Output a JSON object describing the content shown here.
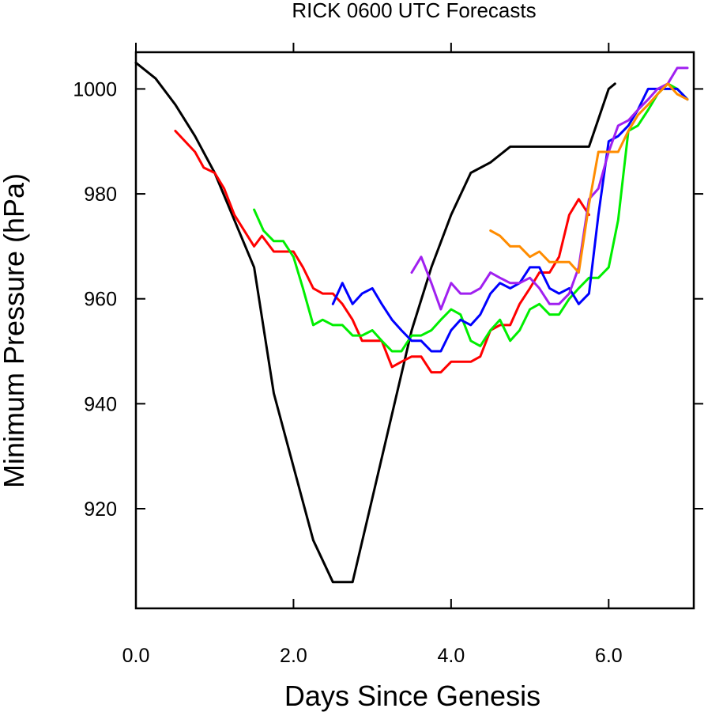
{
  "chart_data": {
    "type": "line",
    "title": "RICK 0600 UTC Forecasts",
    "xlabel": "Days Since Genesis",
    "ylabel": "Minimum Pressure (hPa)",
    "xlim": [
      0,
      7.08
    ],
    "ylim": [
      901,
      1007
    ],
    "x_ticks": [
      0,
      2,
      4,
      6
    ],
    "x_tick_labels": [
      "0.0",
      "2.0",
      "4.0",
      "6.0"
    ],
    "y_ticks": [
      920,
      940,
      960,
      980,
      1000
    ],
    "y_tick_labels": [
      "920",
      "940",
      "960",
      "980",
      "1000"
    ],
    "grid": false,
    "legend": "none",
    "series": [
      {
        "color": "#000000",
        "points": [
          [
            0,
            1005
          ],
          [
            0.25,
            1002
          ],
          [
            0.5,
            997
          ],
          [
            0.75,
            991
          ],
          [
            1.0,
            984
          ],
          [
            1.25,
            975
          ],
          [
            1.5,
            966
          ],
          [
            1.75,
            942
          ],
          [
            2.0,
            928
          ],
          [
            2.25,
            914
          ],
          [
            2.5,
            906
          ],
          [
            2.75,
            906
          ],
          [
            3.0,
            922
          ],
          [
            3.25,
            938
          ],
          [
            3.5,
            954
          ],
          [
            3.75,
            966
          ],
          [
            4.0,
            976
          ],
          [
            4.25,
            984
          ],
          [
            4.5,
            986
          ],
          [
            4.75,
            989
          ],
          [
            5.0,
            989
          ],
          [
            5.25,
            989
          ],
          [
            5.5,
            989
          ],
          [
            5.75,
            989
          ],
          [
            6.0,
            1000
          ],
          [
            6.08,
            1001
          ]
        ]
      },
      {
        "color": "#ff0000",
        "points": [
          [
            0.5,
            992
          ],
          [
            0.75,
            988
          ],
          [
            0.86,
            985
          ],
          [
            1.0,
            984
          ],
          [
            1.12,
            981
          ],
          [
            1.25,
            976
          ],
          [
            1.5,
            970
          ],
          [
            1.6,
            972
          ],
          [
            1.75,
            969
          ],
          [
            2.0,
            969
          ],
          [
            2.12,
            966
          ],
          [
            2.25,
            962
          ],
          [
            2.37,
            961
          ],
          [
            2.5,
            961
          ],
          [
            2.62,
            959
          ],
          [
            2.75,
            956
          ],
          [
            2.87,
            952
          ],
          [
            3.0,
            952
          ],
          [
            3.12,
            952
          ],
          [
            3.25,
            947
          ],
          [
            3.37,
            948
          ],
          [
            3.5,
            949
          ],
          [
            3.62,
            949
          ],
          [
            3.75,
            946
          ],
          [
            3.87,
            946
          ],
          [
            4.0,
            948
          ],
          [
            4.12,
            948
          ],
          [
            4.25,
            948
          ],
          [
            4.37,
            949
          ],
          [
            4.5,
            954
          ],
          [
            4.62,
            955
          ],
          [
            4.75,
            955
          ],
          [
            4.87,
            959
          ],
          [
            5.0,
            962
          ],
          [
            5.12,
            965
          ],
          [
            5.25,
            965
          ],
          [
            5.37,
            968
          ],
          [
            5.5,
            976
          ],
          [
            5.62,
            979
          ],
          [
            5.75,
            976
          ]
        ]
      },
      {
        "color": "#00ee00",
        "points": [
          [
            1.5,
            977
          ],
          [
            1.62,
            973
          ],
          [
            1.75,
            971
          ],
          [
            1.87,
            971
          ],
          [
            2.0,
            968
          ],
          [
            2.12,
            962
          ],
          [
            2.25,
            955
          ],
          [
            2.37,
            956
          ],
          [
            2.5,
            955
          ],
          [
            2.62,
            955
          ],
          [
            2.75,
            953
          ],
          [
            2.87,
            953
          ],
          [
            3.0,
            954
          ],
          [
            3.12,
            952
          ],
          [
            3.25,
            950
          ],
          [
            3.37,
            950
          ],
          [
            3.5,
            953
          ],
          [
            3.62,
            953
          ],
          [
            3.75,
            954
          ],
          [
            3.87,
            956
          ],
          [
            4.0,
            958
          ],
          [
            4.12,
            957
          ],
          [
            4.25,
            952
          ],
          [
            4.37,
            951
          ],
          [
            4.5,
            954
          ],
          [
            4.62,
            956
          ],
          [
            4.75,
            952
          ],
          [
            4.87,
            954
          ],
          [
            5.0,
            958
          ],
          [
            5.12,
            959
          ],
          [
            5.25,
            957
          ],
          [
            5.37,
            957
          ],
          [
            5.5,
            960
          ],
          [
            5.62,
            962
          ],
          [
            5.75,
            964
          ],
          [
            5.87,
            964
          ],
          [
            6.0,
            966
          ],
          [
            6.12,
            975
          ],
          [
            6.25,
            992
          ],
          [
            6.37,
            993
          ],
          [
            6.5,
            996
          ],
          [
            6.62,
            999
          ],
          [
            6.75,
            1001
          ],
          [
            6.87,
            1000
          ],
          [
            7.0,
            998
          ]
        ]
      },
      {
        "color": "#0000ff",
        "points": [
          [
            2.5,
            959
          ],
          [
            2.62,
            963
          ],
          [
            2.75,
            959
          ],
          [
            2.87,
            961
          ],
          [
            3.0,
            962
          ],
          [
            3.12,
            959
          ],
          [
            3.25,
            956
          ],
          [
            3.37,
            954
          ],
          [
            3.5,
            952
          ],
          [
            3.62,
            952
          ],
          [
            3.75,
            950
          ],
          [
            3.87,
            950
          ],
          [
            4.0,
            954
          ],
          [
            4.12,
            956
          ],
          [
            4.25,
            955
          ],
          [
            4.37,
            957
          ],
          [
            4.5,
            961
          ],
          [
            4.62,
            963
          ],
          [
            4.75,
            962
          ],
          [
            4.87,
            963
          ],
          [
            5.0,
            966
          ],
          [
            5.12,
            966
          ],
          [
            5.25,
            962
          ],
          [
            5.37,
            961
          ],
          [
            5.5,
            962
          ],
          [
            5.62,
            959
          ],
          [
            5.75,
            961
          ],
          [
            5.87,
            976
          ],
          [
            6.0,
            990
          ],
          [
            6.12,
            991
          ],
          [
            6.25,
            993
          ],
          [
            6.37,
            996
          ],
          [
            6.5,
            1000
          ],
          [
            6.62,
            1000
          ],
          [
            6.75,
            1000
          ],
          [
            6.87,
            1000
          ],
          [
            7.0,
            998
          ]
        ]
      },
      {
        "color": "#a020f0",
        "points": [
          [
            3.5,
            965
          ],
          [
            3.62,
            968
          ],
          [
            3.75,
            963
          ],
          [
            3.87,
            958
          ],
          [
            4.0,
            963
          ],
          [
            4.12,
            961
          ],
          [
            4.25,
            961
          ],
          [
            4.37,
            962
          ],
          [
            4.5,
            965
          ],
          [
            4.62,
            964
          ],
          [
            4.75,
            963
          ],
          [
            4.87,
            963
          ],
          [
            5.0,
            964
          ],
          [
            5.12,
            962
          ],
          [
            5.25,
            959
          ],
          [
            5.37,
            959
          ],
          [
            5.5,
            961
          ],
          [
            5.62,
            966
          ],
          [
            5.75,
            979
          ],
          [
            5.87,
            981
          ],
          [
            6.0,
            988
          ],
          [
            6.12,
            993
          ],
          [
            6.25,
            994
          ],
          [
            6.37,
            996
          ],
          [
            6.5,
            998
          ],
          [
            6.62,
            1000
          ],
          [
            6.75,
            1001
          ],
          [
            6.87,
            1004
          ],
          [
            7.0,
            1004
          ]
        ]
      },
      {
        "color": "#ff8c00",
        "points": [
          [
            4.5,
            973
          ],
          [
            4.62,
            972
          ],
          [
            4.75,
            970
          ],
          [
            4.87,
            970
          ],
          [
            5.0,
            968
          ],
          [
            5.12,
            969
          ],
          [
            5.25,
            967
          ],
          [
            5.37,
            967
          ],
          [
            5.5,
            967
          ],
          [
            5.62,
            965
          ],
          [
            5.75,
            978
          ],
          [
            5.87,
            988
          ],
          [
            6.0,
            988
          ],
          [
            6.12,
            988
          ],
          [
            6.25,
            992
          ],
          [
            6.37,
            995
          ],
          [
            6.5,
            997
          ],
          [
            6.62,
            999
          ],
          [
            6.75,
            1001
          ],
          [
            6.87,
            999
          ],
          [
            7.0,
            998
          ]
        ]
      }
    ]
  }
}
